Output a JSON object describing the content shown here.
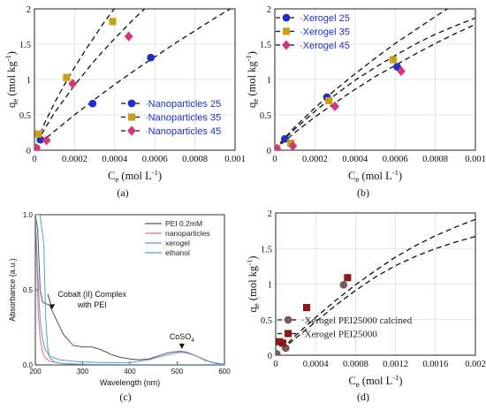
{
  "chart_data": [
    {
      "type": "scatter",
      "panel_label": "(a)",
      "xlabel": "C",
      "xlabel_sub": "e",
      "xlabel_unit": " (mol L",
      "xlabel_sup": "-1",
      "xlabel_close": ")",
      "ylabel": "q",
      "ylabel_sub": "e",
      "ylabel_unit": " (mol kg",
      "ylabel_sup": "-1",
      "ylabel_close": ")",
      "xlim": [
        0,
        0.001
      ],
      "ylim": [
        0,
        2
      ],
      "xticks": [
        "0",
        "0.0002",
        "0.0004",
        "0.0006",
        "0.0008",
        "0.001"
      ],
      "yticks": [
        "0",
        "0.5",
        "1",
        "1.5",
        "2"
      ],
      "grid": true,
      "legend_position": "bottom-right",
      "series": [
        {
          "name": "Nanoparticles 25",
          "color": "#1f2fc8",
          "marker": "circle",
          "label_color": "#1f2fc8",
          "x": [
            3e-05,
            0.00029,
            0.00058
          ],
          "y": [
            0.15,
            0.66,
            1.31
          ],
          "fit_x": [
            0,
            2e-05,
            0.0001,
            0.0002,
            0.0003,
            0.0004,
            0.0005,
            0.0006,
            0.0007,
            0.0008,
            0.0009,
            0.001
          ],
          "fit_y": [
            0,
            0.08,
            0.27,
            0.5,
            0.72,
            0.93,
            1.13,
            1.32,
            1.51,
            1.69,
            1.87,
            2.04
          ]
        },
        {
          "name": "Nanoparticles 35",
          "color": "#c9a118",
          "marker": "square",
          "label_color": "#1f2fc8",
          "x": [
            1e-05,
            2e-05,
            0.00016,
            0.00039
          ],
          "y": [
            0.02,
            0.23,
            1.03,
            1.82
          ],
          "fit_x": [
            0,
            1e-05,
            5e-05,
            0.0001,
            0.00015,
            0.0002,
            0.00025,
            0.0003,
            0.00035,
            0.0004,
            0.00045,
            0.0005
          ],
          "fit_y": [
            0,
            0.1,
            0.38,
            0.67,
            0.93,
            1.17,
            1.4,
            1.61,
            1.82,
            2.01,
            2.2,
            2.38
          ]
        },
        {
          "name": "Nanoparticles 45",
          "color": "#d4367a",
          "marker": "diamond",
          "label_color": "#1f2fc8",
          "x": [
            1e-05,
            6e-05,
            0.00019,
            0.00047
          ],
          "y": [
            0.03,
            0.14,
            0.94,
            1.61
          ],
          "fit_x": [
            0,
            1e-05,
            5e-05,
            0.0001,
            0.0002,
            0.0003,
            0.0004,
            0.0005,
            0.0006,
            0.00065
          ],
          "fit_y": [
            0,
            0.08,
            0.3,
            0.53,
            0.92,
            1.27,
            1.58,
            1.87,
            2.13,
            2.26
          ]
        }
      ]
    },
    {
      "type": "scatter",
      "panel_label": "(b)",
      "xlabel": "C",
      "xlabel_sub": "e",
      "xlabel_unit": " (mol L",
      "xlabel_sup": "-1",
      "xlabel_close": ")",
      "ylabel": "q",
      "ylabel_sub": "e",
      "ylabel_unit": " (mol kg",
      "ylabel_sup": "-1",
      "ylabel_close": ")",
      "xlim": [
        0,
        0.001
      ],
      "ylim": [
        0,
        2
      ],
      "xticks": [
        "0",
        "0.0002",
        "0.0004",
        "0.0006",
        "0.0008",
        "0.001"
      ],
      "yticks": [
        "0",
        "0.5",
        "1",
        "1.5",
        "2"
      ],
      "grid": true,
      "legend_position": "top-left",
      "series": [
        {
          "name": "Xerogel 25",
          "color": "#1f2fc8",
          "marker": "circle",
          "label_color": "#1f2fc8",
          "x": [
            5e-05,
            0.00026,
            0.00061
          ],
          "y": [
            0.16,
            0.75,
            1.18
          ],
          "fit_x": [
            0,
            2e-05,
            0.0001,
            0.0002,
            0.0003,
            0.0004,
            0.0005,
            0.0006,
            0.0007,
            0.0008,
            0.0009,
            0.001
          ],
          "fit_y": [
            0,
            0.08,
            0.3,
            0.55,
            0.78,
            0.99,
            1.17,
            1.34,
            1.5,
            1.64,
            1.76,
            1.87
          ]
        },
        {
          "name": "Xerogel 35",
          "color": "#c9a118",
          "marker": "square",
          "label_color": "#1f2fc8",
          "x": [
            1e-05,
            8e-05,
            0.00027,
            0.00059
          ],
          "y": [
            0.03,
            0.1,
            0.7,
            1.28
          ],
          "fit_x": [
            0,
            2e-05,
            0.0001,
            0.0002,
            0.0003,
            0.0004,
            0.0005,
            0.0006,
            0.0007,
            0.0008,
            0.0009
          ],
          "fit_y": [
            0,
            0.08,
            0.33,
            0.6,
            0.85,
            1.08,
            1.3,
            1.51,
            1.7,
            1.89,
            2.07
          ]
        },
        {
          "name": "Xerogel 45",
          "color": "#d4367a",
          "marker": "diamond",
          "label_color": "#1f2fc8",
          "x": [
            1e-05,
            9e-05,
            0.0003,
            0.00063
          ],
          "y": [
            0.02,
            0.06,
            0.62,
            1.12
          ],
          "fit_x": [
            0,
            2e-05,
            0.0001,
            0.0002,
            0.0003,
            0.0004,
            0.0005,
            0.0006,
            0.0007,
            0.0008,
            0.0009,
            0.001
          ],
          "fit_y": [
            0,
            0.06,
            0.25,
            0.47,
            0.67,
            0.86,
            1.04,
            1.2,
            1.36,
            1.51,
            1.65,
            1.78
          ]
        }
      ]
    },
    {
      "type": "line",
      "panel_label": "(c)",
      "xlabel": "Wavelength (nm)",
      "ylabel": "Absorbance (a.u.)",
      "xlim": [
        200,
        600
      ],
      "ylim": [
        0,
        1
      ],
      "xticks": [
        "200",
        "300",
        "400",
        "500",
        "600"
      ],
      "yticks": [
        "0.0",
        "0.5",
        "1.0"
      ],
      "grid": false,
      "legend_position": "top-right",
      "annotations": [
        {
          "line1": "Cobalt (II) Complex",
          "line2": "with PEI",
          "x": 320,
          "y": 0.5,
          "arrow_x": 230,
          "arrow_y": 0.4
        },
        {
          "line1": "CoSO",
          "sub": "4",
          "x": 510,
          "y": 0.17,
          "arrow_x": 510,
          "arrow_y": 0.1
        }
      ],
      "series": [
        {
          "name": "PEI 0.2mM",
          "color": "#555555",
          "x": [
            200,
            205,
            210,
            215,
            220,
            230,
            240,
            260,
            280,
            300,
            320,
            340,
            360,
            380,
            400,
            420,
            440,
            460,
            480,
            500,
            510,
            520,
            540,
            560,
            580,
            600
          ],
          "y": [
            1.0,
            0.9,
            0.5,
            0.42,
            0.41,
            0.4,
            0.33,
            0.2,
            0.13,
            0.12,
            0.12,
            0.1,
            0.07,
            0.05,
            0.04,
            0.035,
            0.04,
            0.06,
            0.08,
            0.09,
            0.09,
            0.085,
            0.06,
            0.03,
            0.012,
            0.005
          ]
        },
        {
          "name": "nanoparticles",
          "color": "#e07070",
          "x": [
            200,
            203,
            206,
            210,
            215,
            220,
            230,
            250,
            280,
            300,
            350,
            400,
            450,
            500,
            550,
            600
          ],
          "y": [
            1.0,
            0.7,
            0.35,
            0.18,
            0.09,
            0.05,
            0.025,
            0.012,
            0.006,
            0.004,
            0.002,
            0.001,
            0.001,
            0.001,
            0.001,
            0.001
          ]
        },
        {
          "name": "xerogel",
          "color": "#6a8fd6",
          "x": [
            200,
            205,
            210,
            215,
            220,
            230,
            250,
            280,
            300,
            350,
            400,
            440,
            470,
            500,
            510,
            520,
            540,
            570,
            600
          ],
          "y": [
            1.0,
            0.6,
            0.3,
            0.18,
            0.11,
            0.06,
            0.035,
            0.025,
            0.02,
            0.015,
            0.015,
            0.035,
            0.06,
            0.08,
            0.085,
            0.08,
            0.06,
            0.02,
            0.004
          ]
        },
        {
          "name": "ethanol",
          "color": "#40b0b0",
          "x": [
            200,
            210,
            218,
            222,
            226,
            230,
            240,
            260,
            300,
            400,
            500,
            600
          ],
          "y": [
            1.0,
            1.0,
            0.8,
            0.3,
            0.12,
            0.05,
            0.02,
            0.008,
            0.004,
            0.002,
            0.002,
            0.002
          ]
        }
      ]
    },
    {
      "type": "scatter",
      "panel_label": "(d)",
      "xlabel": "C",
      "xlabel_sub": "e",
      "xlabel_unit": " (mol L",
      "xlabel_sup": "-1",
      "xlabel_close": ")",
      "ylabel": "q",
      "ylabel_sub": "e",
      "ylabel_unit": " (mol kg",
      "ylabel_sup": "-1",
      "ylabel_close": ")",
      "xlim": [
        0,
        0.002
      ],
      "ylim": [
        0,
        2
      ],
      "xticks": [
        "0",
        "0.0004",
        "0.0008",
        "0.0012",
        "0.0016",
        "0.002"
      ],
      "yticks": [
        "0",
        "0.5",
        "1",
        "1.5",
        "2"
      ],
      "grid": true,
      "legend_position": "bottom-right",
      "series": [
        {
          "name": "Xerogel PEI25000 calcined",
          "color": "#7a5a5a",
          "marker": "circle",
          "label_color": "#222222",
          "x": [
            1e-05,
            0.0001,
            0.00068
          ],
          "y": [
            0.02,
            0.1,
            0.99
          ],
          "fit_x": [
            0,
            5e-05,
            0.0002,
            0.0004,
            0.0006,
            0.0008,
            0.001,
            0.0012,
            0.0014,
            0.0016,
            0.0018,
            0.002
          ],
          "fit_y": [
            0,
            0.06,
            0.24,
            0.47,
            0.7,
            0.91,
            1.1,
            1.26,
            1.39,
            1.5,
            1.59,
            1.67
          ]
        },
        {
          "name": "Xerogel PEI25000",
          "color": "#8b1a1a",
          "marker": "square",
          "label_color": "#222222",
          "x": [
            4e-05,
            7e-05,
            0.00031,
            0.00072
          ],
          "y": [
            0.19,
            0.17,
            0.67,
            1.09
          ],
          "fit_x": [
            0,
            5e-05,
            0.0002,
            0.0004,
            0.0006,
            0.0008,
            0.001,
            0.0012,
            0.0014,
            0.0016,
            0.0018,
            0.002
          ],
          "fit_y": [
            0,
            0.07,
            0.28,
            0.53,
            0.77,
            0.99,
            1.19,
            1.38,
            1.54,
            1.68,
            1.8,
            1.91
          ]
        }
      ]
    }
  ]
}
